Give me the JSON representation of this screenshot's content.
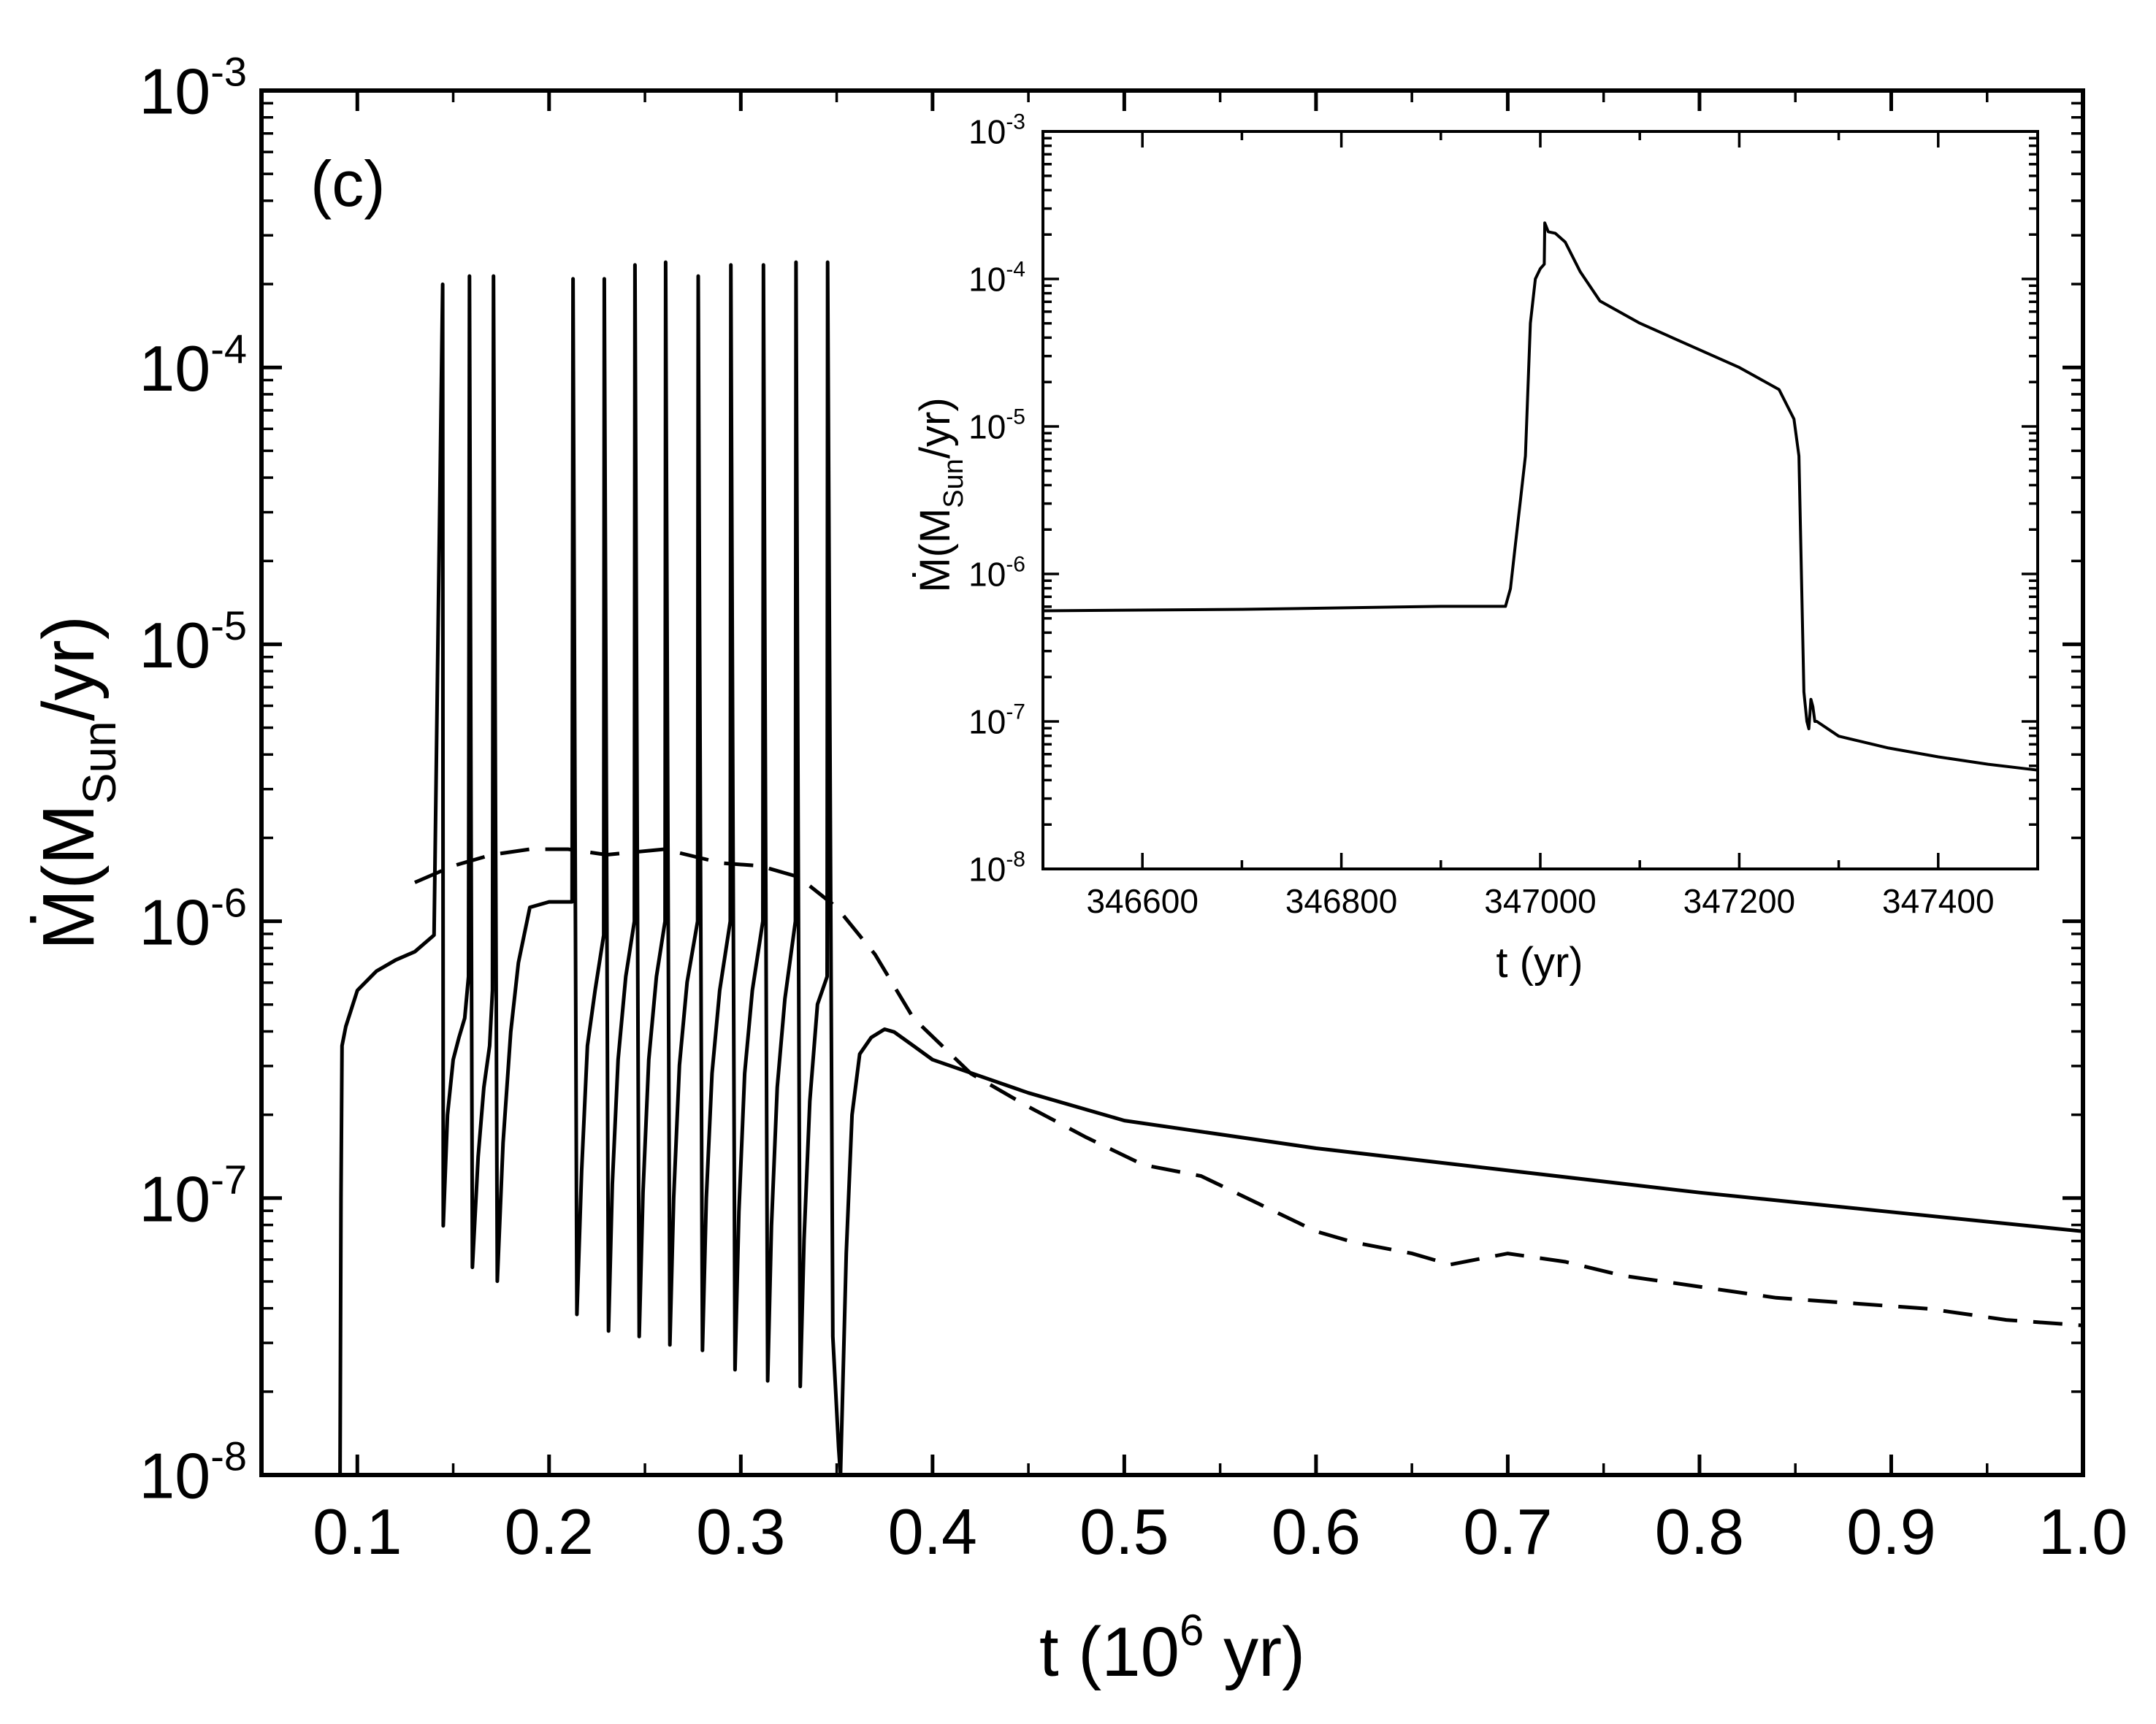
{
  "chart_data": [
    {
      "id": "main",
      "type": "line",
      "panel_label": "(c)",
      "xlabel": "t (10",
      "xlabel_exp": "6",
      "xlabel_tail": " yr)",
      "ylabel_main": "Ṁ(M",
      "ylabel_sub": "Sun",
      "ylabel_tail": "/yr)",
      "xlim": [
        0.05,
        1.0
      ],
      "ylim_log10": [
        -8,
        -3
      ],
      "x_ticks": [
        0.1,
        0.2,
        0.3,
        0.4,
        0.5,
        0.6,
        0.7,
        0.8,
        0.9,
        1.0
      ],
      "x_tick_labels": [
        "0.1",
        "0.2",
        "0.3",
        "0.4",
        "0.5",
        "0.6",
        "0.7",
        "0.8",
        "0.9",
        "1.0"
      ],
      "y_ticks_log10": [
        -8,
        -7,
        -6,
        -5,
        -4,
        -3
      ],
      "y_tick_base": "10",
      "y_tick_exps": [
        "-8",
        "-7",
        "-6",
        "-5",
        "-4",
        "-3"
      ],
      "series": [
        {
          "name": "solid",
          "style": "solid",
          "x": [
            0.091,
            0.0915,
            0.092,
            0.094,
            0.1,
            0.11,
            0.12,
            0.13,
            0.14,
            0.1445,
            0.1448,
            0.147,
            0.15,
            0.153,
            0.156,
            0.158,
            0.1585,
            0.16,
            0.163,
            0.166,
            0.169,
            0.1705,
            0.171,
            0.173,
            0.176,
            0.18,
            0.184,
            0.19,
            0.2,
            0.212,
            0.2125,
            0.2145,
            0.217,
            0.22,
            0.224,
            0.2285,
            0.2288,
            0.231,
            0.233,
            0.236,
            0.24,
            0.2445,
            0.2448,
            0.247,
            0.249,
            0.252,
            0.256,
            0.2605,
            0.2608,
            0.263,
            0.265,
            0.268,
            0.272,
            0.2775,
            0.2778,
            0.28,
            0.282,
            0.285,
            0.289,
            0.2945,
            0.2948,
            0.297,
            0.299,
            0.302,
            0.306,
            0.3115,
            0.3118,
            0.314,
            0.316,
            0.319,
            0.323,
            0.3285,
            0.3288,
            0.331,
            0.333,
            0.336,
            0.34,
            0.345,
            0.3453,
            0.348,
            0.351,
            0.352,
            0.355,
            0.358,
            0.362,
            0.368,
            0.375,
            0.38,
            0.39,
            0.4,
            0.45,
            0.5,
            0.6,
            0.7,
            0.8,
            0.9,
            1.0
          ],
          "log10_y": [
            -8,
            -7,
            -6.45,
            -6.38,
            -6.25,
            -6.18,
            -6.14,
            -6.11,
            -6.05,
            -3.7,
            -7.1,
            -6.7,
            -6.5,
            -6.42,
            -6.35,
            -6.2,
            -3.67,
            -7.25,
            -6.85,
            -6.6,
            -6.45,
            -6.25,
            -3.67,
            -7.3,
            -6.8,
            -6.4,
            -6.15,
            -5.95,
            -5.93,
            -5.93,
            -3.68,
            -7.42,
            -6.9,
            -6.45,
            -6.25,
            -6.05,
            -3.68,
            -7.48,
            -6.95,
            -6.5,
            -6.2,
            -6.0,
            -3.63,
            -7.5,
            -6.98,
            -6.5,
            -6.2,
            -6.0,
            -3.62,
            -7.53,
            -7.0,
            -6.52,
            -6.22,
            -6.0,
            -3.67,
            -7.55,
            -7.0,
            -6.55,
            -6.25,
            -6.0,
            -3.63,
            -7.62,
            -7.05,
            -6.55,
            -6.25,
            -6.0,
            -3.63,
            -7.66,
            -7.1,
            -6.6,
            -6.28,
            -6.0,
            -3.62,
            -7.68,
            -7.15,
            -6.65,
            -6.3,
            -6.2,
            -3.62,
            -7.5,
            -7.9,
            -8.0,
            -7.2,
            -6.7,
            -6.48,
            -6.42,
            -6.39,
            -6.4,
            -6.45,
            -6.5,
            -6.62,
            -6.72,
            -6.82,
            -6.9,
            -6.98,
            -7.05,
            -7.12
          ]
        },
        {
          "name": "dashed",
          "style": "dashed",
          "x": [
            0.13,
            0.15,
            0.17,
            0.19,
            0.21,
            0.23,
            0.26,
            0.29,
            0.31,
            0.33,
            0.35,
            0.37,
            0.39,
            0.42,
            0.45,
            0.48,
            0.51,
            0.54,
            0.57,
            0.6,
            0.62,
            0.65,
            0.67,
            0.7,
            0.73,
            0.76,
            0.8,
            0.84,
            0.88,
            0.92,
            0.96,
            1.0
          ],
          "log10_y": [
            -5.86,
            -5.8,
            -5.76,
            -5.74,
            -5.74,
            -5.76,
            -5.74,
            -5.79,
            -5.8,
            -5.84,
            -5.95,
            -6.12,
            -6.35,
            -6.55,
            -6.67,
            -6.78,
            -6.88,
            -6.92,
            -7.02,
            -7.12,
            -7.16,
            -7.2,
            -7.24,
            -7.2,
            -7.23,
            -7.28,
            -7.32,
            -7.36,
            -7.38,
            -7.4,
            -7.44,
            -7.46
          ]
        }
      ]
    },
    {
      "id": "inset",
      "type": "line",
      "xlabel": "t (yr)",
      "ylabel_main": "Ṁ(M",
      "ylabel_sub": "Sun",
      "ylabel_tail": "/yr)",
      "xlim": [
        346500,
        347500
      ],
      "ylim_log10": [
        -8,
        -3
      ],
      "x_ticks": [
        346600,
        346800,
        347000,
        347200,
        347400
      ],
      "x_tick_labels": [
        "346600",
        "346800",
        "347000",
        "347200",
        "347400"
      ],
      "y_ticks_log10": [
        -8,
        -7,
        -6,
        -5,
        -4,
        -3
      ],
      "y_tick_base": "10",
      "y_tick_exps": [
        "-8",
        "-7",
        "-6",
        "-5",
        "-4",
        "-3"
      ],
      "series": [
        {
          "name": "inset-solid",
          "style": "solid",
          "x": [
            346500,
            346700,
            346900,
            346965,
            346970,
            346975,
            346980,
            346985,
            346990,
            346995,
            347000,
            347004,
            347004.5,
            347008,
            347015,
            347025,
            347040,
            347060,
            347100,
            347150,
            347200,
            347240,
            347255,
            347260,
            347265,
            347268,
            347270,
            347272,
            347274,
            347276,
            347278,
            347300,
            347350,
            347400,
            347450,
            347500
          ],
          "log10_y": [
            -6.25,
            -6.24,
            -6.22,
            -6.22,
            -6.1,
            -5.8,
            -5.5,
            -5.2,
            -4.3,
            -4.0,
            -3.93,
            -3.9,
            -3.62,
            -3.68,
            -3.69,
            -3.75,
            -3.95,
            -4.15,
            -4.3,
            -4.45,
            -4.6,
            -4.75,
            -4.95,
            -5.2,
            -6.8,
            -7.0,
            -7.05,
            -6.85,
            -6.9,
            -7.0,
            -7.0,
            -7.1,
            -7.18,
            -7.24,
            -7.29,
            -7.33
          ]
        }
      ]
    }
  ]
}
